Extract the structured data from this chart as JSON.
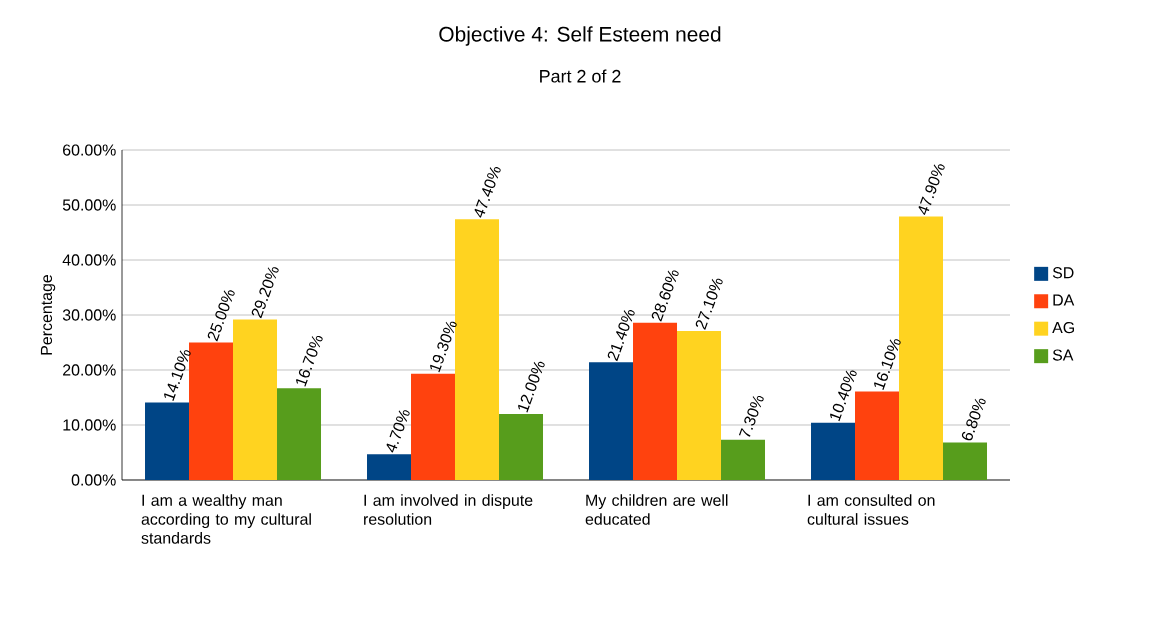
{
  "chart_data": {
    "type": "bar",
    "title": "Objective 4: Self Esteem need",
    "subtitle": "Part 2 of 2",
    "ylabel": "Percentage",
    "categories": [
      "I am a wealthy man according to my cultural standards",
      "I am involved in dispute resolution",
      "My children are well educated",
      "I am consulted on cultural issues"
    ],
    "series": [
      {
        "name": "SD",
        "color": "#004586",
        "values": [
          14.1,
          4.7,
          21.4,
          10.4
        ],
        "value_labels": [
          "14.10%",
          "4.70%",
          "21.40%",
          "10.40%"
        ]
      },
      {
        "name": "DA",
        "color": "#ff420e",
        "values": [
          25.0,
          19.3,
          28.6,
          16.1
        ],
        "value_labels": [
          "25.00%",
          "19.30%",
          "28.60%",
          "16.10%"
        ]
      },
      {
        "name": "AG",
        "color": "#ffd320",
        "values": [
          29.2,
          47.4,
          27.1,
          47.9
        ],
        "value_labels": [
          "29.20%",
          "47.40%",
          "27.10%",
          "47.90%"
        ]
      },
      {
        "name": "SA",
        "color": "#579d1c",
        "values": [
          16.7,
          12.0,
          7.3,
          6.8
        ],
        "value_labels": [
          "16.70%",
          "12.00%",
          "7.30%",
          "6.80%"
        ]
      }
    ],
    "ylim": [
      0,
      60
    ],
    "yticks": [
      {
        "value": 0,
        "label": "0.00%"
      },
      {
        "value": 10,
        "label": "10.00%"
      },
      {
        "value": 20,
        "label": "20.00%"
      },
      {
        "value": 30,
        "label": "30.00%"
      },
      {
        "value": 40,
        "label": "40.00%"
      },
      {
        "value": 50,
        "label": "50.00%"
      },
      {
        "value": 60,
        "label": "60.00%"
      }
    ],
    "grid": "y",
    "legend": "right"
  }
}
